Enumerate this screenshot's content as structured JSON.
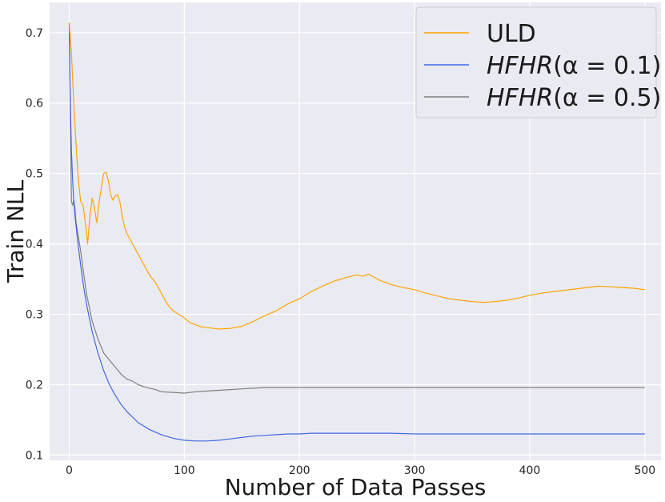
{
  "chart_data": {
    "type": "line",
    "xlabel": "Number of Data Passes",
    "ylabel": "Train NLL",
    "xlim": [
      -17,
      514
    ],
    "ylim": [
      0.0925,
      0.743
    ],
    "xticks": [
      0,
      100,
      200,
      300,
      400,
      500
    ],
    "yticks": [
      0.1,
      0.2,
      0.3,
      0.4,
      0.5,
      0.6,
      0.7
    ],
    "grid": true,
    "legend_position": "top-right",
    "series": [
      {
        "name": "ULD",
        "color": "#FFA500",
        "x": [
          0,
          2,
          4,
          6,
          8,
          10,
          12,
          14,
          16,
          18,
          20,
          22,
          24,
          26,
          28,
          30,
          32,
          34,
          36,
          38,
          40,
          42,
          44,
          46,
          48,
          50,
          55,
          60,
          65,
          70,
          75,
          80,
          85,
          90,
          95,
          100,
          105,
          110,
          115,
          120,
          130,
          140,
          150,
          160,
          170,
          180,
          190,
          200,
          210,
          220,
          230,
          240,
          250,
          255,
          260,
          270,
          280,
          290,
          300,
          310,
          320,
          330,
          340,
          350,
          360,
          370,
          380,
          390,
          400,
          410,
          420,
          430,
          440,
          450,
          460,
          470,
          480,
          490,
          500
        ],
        "values": [
          0.714,
          0.67,
          0.6,
          0.54,
          0.49,
          0.46,
          0.455,
          0.43,
          0.4,
          0.44,
          0.465,
          0.45,
          0.43,
          0.46,
          0.48,
          0.5,
          0.502,
          0.49,
          0.47,
          0.462,
          0.468,
          0.47,
          0.46,
          0.44,
          0.425,
          0.415,
          0.4,
          0.385,
          0.37,
          0.355,
          0.345,
          0.33,
          0.315,
          0.305,
          0.3,
          0.295,
          0.288,
          0.285,
          0.282,
          0.281,
          0.279,
          0.28,
          0.283,
          0.29,
          0.298,
          0.305,
          0.315,
          0.322,
          0.332,
          0.34,
          0.347,
          0.352,
          0.356,
          0.354,
          0.357,
          0.348,
          0.342,
          0.338,
          0.335,
          0.33,
          0.326,
          0.322,
          0.32,
          0.318,
          0.317,
          0.318,
          0.32,
          0.323,
          0.327,
          0.33,
          0.332,
          0.334,
          0.336,
          0.338,
          0.34,
          0.339,
          0.338,
          0.337,
          0.335
        ]
      },
      {
        "name": "HFHR(α = 0.1)",
        "color": "#4169E1",
        "x": [
          0,
          1,
          2,
          3,
          4,
          5,
          6,
          8,
          10,
          12,
          15,
          20,
          25,
          30,
          35,
          40,
          45,
          50,
          60,
          70,
          80,
          90,
          100,
          110,
          120,
          130,
          140,
          150,
          160,
          170,
          180,
          190,
          200,
          210,
          220,
          240,
          260,
          280,
          300,
          320,
          340,
          360,
          380,
          400,
          420,
          440,
          460,
          480,
          500
        ],
        "values": [
          0.714,
          0.6,
          0.53,
          0.49,
          0.46,
          0.44,
          0.425,
          0.395,
          0.37,
          0.345,
          0.315,
          0.275,
          0.245,
          0.22,
          0.2,
          0.185,
          0.172,
          0.162,
          0.146,
          0.136,
          0.129,
          0.124,
          0.121,
          0.12,
          0.12,
          0.121,
          0.123,
          0.125,
          0.127,
          0.128,
          0.129,
          0.13,
          0.13,
          0.131,
          0.131,
          0.131,
          0.131,
          0.131,
          0.13,
          0.13,
          0.13,
          0.13,
          0.13,
          0.13,
          0.13,
          0.13,
          0.13,
          0.13,
          0.13
        ]
      },
      {
        "name": "HFHR(α = 0.5)",
        "color": "#808080",
        "x": [
          0,
          1,
          2,
          3,
          4,
          5,
          6,
          8,
          10,
          12,
          15,
          20,
          25,
          30,
          35,
          40,
          45,
          50,
          55,
          60,
          65,
          70,
          75,
          80,
          90,
          100,
          110,
          120,
          130,
          140,
          150,
          160,
          170,
          180,
          190,
          200,
          220,
          240,
          260,
          280,
          300,
          320,
          340,
          360,
          380,
          400,
          420,
          440,
          460,
          480,
          500
        ],
        "values": [
          0.714,
          0.58,
          0.46,
          0.455,
          0.462,
          0.45,
          0.43,
          0.41,
          0.39,
          0.365,
          0.33,
          0.29,
          0.265,
          0.245,
          0.235,
          0.225,
          0.215,
          0.208,
          0.205,
          0.2,
          0.197,
          0.195,
          0.193,
          0.19,
          0.189,
          0.188,
          0.19,
          0.191,
          0.192,
          0.193,
          0.194,
          0.195,
          0.196,
          0.196,
          0.196,
          0.196,
          0.196,
          0.196,
          0.196,
          0.196,
          0.196,
          0.196,
          0.196,
          0.196,
          0.196,
          0.196,
          0.196,
          0.196,
          0.196,
          0.196,
          0.196
        ]
      }
    ]
  },
  "legend": {
    "items": [
      {
        "text": "ULD",
        "italic_main": "",
        "rest": "ULD"
      },
      {
        "text": "HFHR(α = 0.1)",
        "italic_main": "HFHR",
        "rest": "(α = 0.1)"
      },
      {
        "text": "HFHR(α = 0.5)",
        "italic_main": "HFHR",
        "rest": "(α = 0.5)"
      }
    ]
  }
}
